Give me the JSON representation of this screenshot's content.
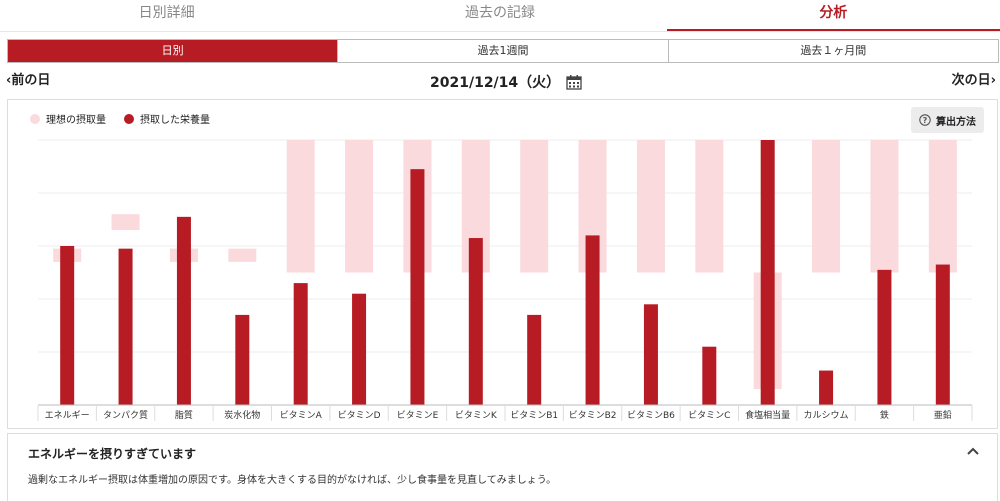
{
  "tabs": [
    {
      "label": "日別詳細",
      "active": false
    },
    {
      "label": "過去の記録",
      "active": false
    },
    {
      "label": "分析",
      "active": true
    }
  ],
  "range_tabs": [
    {
      "label": "日別",
      "active": true
    },
    {
      "label": "過去1週間",
      "active": false
    },
    {
      "label": "過去１ヶ月間",
      "active": false
    }
  ],
  "date_nav": {
    "prev_label": "前の日",
    "date": "2021/12/14（火）",
    "next_label": "次の日"
  },
  "legend": {
    "ideal_label": "理想の摂取量",
    "actual_label": "摂取した栄養量"
  },
  "method_button_label": "算出方法",
  "colors": {
    "accent": "#b71c24",
    "ideal": "#fadadd"
  },
  "chart_data": {
    "type": "bar",
    "categories": [
      "エネルギー",
      "タンパク質",
      "脂質",
      "炭水化物",
      "ビタミンA",
      "ビタミンD",
      "ビタミンE",
      "ビタミンK",
      "ビタミンB1",
      "ビタミンB2",
      "ビタミンB6",
      "ビタミンC",
      "食塩相当量",
      "カルシウム",
      "鉄",
      "亜鉛"
    ],
    "ideal_ranges": [
      [
        0.54,
        0.59
      ],
      [
        0.66,
        0.72
      ],
      [
        0.54,
        0.59
      ],
      [
        0.54,
        0.59
      ],
      [
        0.5,
        1.0
      ],
      [
        0.5,
        1.0
      ],
      [
        0.5,
        1.0
      ],
      [
        0.5,
        1.0
      ],
      [
        0.5,
        1.0
      ],
      [
        0.5,
        1.0
      ],
      [
        0.5,
        1.0
      ],
      [
        0.5,
        1.0
      ],
      [
        0.06,
        0.5
      ],
      [
        0.5,
        1.0
      ],
      [
        0.5,
        1.0
      ],
      [
        0.5,
        1.0
      ]
    ],
    "series": [
      {
        "name": "摂取した栄養量",
        "values": [
          0.6,
          0.59,
          0.71,
          0.34,
          0.46,
          0.42,
          0.89,
          0.63,
          0.34,
          0.64,
          0.38,
          0.22,
          1.0,
          0.13,
          0.51,
          0.53
        ]
      }
    ],
    "ylim": [
      0,
      1
    ],
    "grid": true,
    "legend_position": "top-left"
  },
  "advice": {
    "title": "エネルギーを摂りすぎています",
    "body": "過剰なエネルギー摂取は体重増加の原因です。身体を大きくする目的がなければ、少し食事量を見直してみましょう。"
  }
}
